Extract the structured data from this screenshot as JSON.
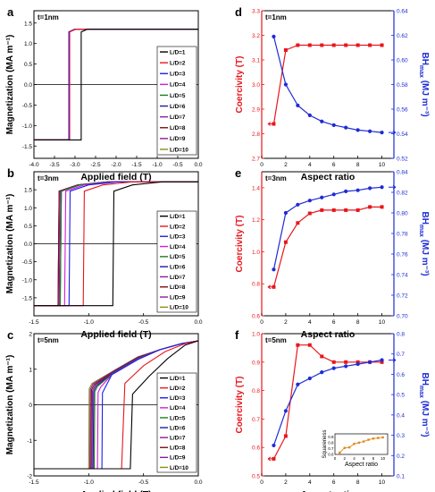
{
  "figure_title": "Magnetization curves and coercivity vs aspect ratio",
  "series_colors": [
    "#000000",
    "#e8161c",
    "#1d1dea",
    "#d61ad6",
    "#1a7f1a",
    "#1a1aa8",
    "#8a1a9e",
    "#7a1010",
    "#8a1a9e",
    "#8c8c1a"
  ],
  "red_color": "#e8161c",
  "blue_color": "#1d2bd6",
  "orange_color": "#e08a1a",
  "chart_data": [
    {
      "id": "a",
      "panel_label": "a",
      "type": "line",
      "annotation": "t=1nm",
      "xlabel": "Applied field (T)",
      "ylabel": "Magnetization (MA m⁻¹)",
      "xlim": [
        -4.0,
        0.0
      ],
      "ylim": [
        -1.8,
        1.8
      ],
      "xticks": [
        -4.0,
        -3.5,
        -3.0,
        -2.5,
        -2.0,
        -1.5,
        -1.0,
        -0.5,
        0.0
      ],
      "xtick_labels": [
        "-4.0",
        "-3.5",
        "-3.0",
        "-2.5",
        "-2.0",
        "-1.5",
        "-1.0",
        "-0.5",
        "0.0"
      ],
      "yticks": [
        -1.5,
        -1.0,
        -0.5,
        0.0,
        0.5,
        1.0,
        1.5
      ],
      "ytick_labels": [
        "-1.5",
        "-1.0",
        "-0.5",
        "0.0",
        "0.5",
        "1.0",
        "1.5"
      ],
      "legend": [
        "L/D=1",
        "L/D=2",
        "L/D=3",
        "L/D=4",
        "L/D=5",
        "L/D=6",
        "L/D=7",
        "L/D=8",
        "L/D=9",
        "L/D=10"
      ],
      "legend_position": "right",
      "ms": 1.35,
      "switch_fields": [
        -2.85,
        -3.13,
        -3.15,
        -3.15,
        -3.15,
        -3.15,
        -3.15,
        -3.15,
        -3.15,
        -3.15
      ]
    },
    {
      "id": "b",
      "panel_label": "b",
      "type": "line",
      "annotation": "t=3nm",
      "xlabel": "Applied field (T)",
      "ylabel": "Magnetization (MA m⁻¹)",
      "xlim": [
        -1.5,
        0.0
      ],
      "ylim": [
        -2.0,
        2.0
      ],
      "xticks": [
        -1.5,
        -1.0,
        -0.5,
        0.0
      ],
      "xtick_labels": [
        "-1.5",
        "-1.0",
        "-0.5",
        "0.0"
      ],
      "yticks": [
        -1.5,
        -1.0,
        -0.5,
        0.0,
        0.5,
        1.0,
        1.5
      ],
      "ytick_labels": [
        "-1.5",
        "-1.0",
        "-0.5",
        "0.0",
        "0.5",
        "1.0",
        "1.5"
      ],
      "legend": [
        "L/D=1",
        "L/D=2",
        "L/D=3",
        "L/D=4",
        "L/D=5",
        "L/D=6",
        "L/D=7",
        "L/D=8",
        "L/D=9",
        "L/D=10"
      ],
      "legend_position": "right",
      "ms": 1.72,
      "switch_fields": [
        -0.78,
        -1.05,
        -1.18,
        -1.22,
        -1.26,
        -1.26,
        -1.27,
        -1.28,
        -1.28,
        -1.28
      ]
    },
    {
      "id": "c",
      "panel_label": "c",
      "type": "line",
      "annotation": "t=5nm",
      "xlabel": "Applied field (T)",
      "ylabel": "Magnetization (MA m⁻¹)",
      "xlim": [
        -1.5,
        0.0
      ],
      "ylim": [
        -2.0,
        2.0
      ],
      "xticks": [
        -1.5,
        -1.0,
        -0.5,
        0.0
      ],
      "xtick_labels": [
        "-1.5",
        "-1.0",
        "-0.5",
        "0.0"
      ],
      "yticks": [
        -2,
        -1,
        0,
        1,
        2
      ],
      "ytick_labels": [
        "-2",
        "-1",
        "0",
        "1",
        "2"
      ],
      "legend": [
        "L/D=1",
        "L/D=2",
        "L/D=3",
        "L/D=4",
        "L/D=5",
        "L/D=6",
        "L/D=7",
        "L/D=8",
        "L/D=9",
        "L/D=10"
      ],
      "legend_position": "right",
      "ms": 1.8,
      "switch_fields": [
        -0.62,
        -0.7,
        -0.88,
        -0.92,
        -0.95,
        -0.96,
        -0.97,
        -0.98,
        -0.99,
        -1.0
      ]
    },
    {
      "id": "d",
      "panel_label": "d",
      "type": "line",
      "annotation": "t=1nm",
      "xlabel": "Aspect ratio",
      "ylabel_left": "Coercivity (T)",
      "ylabel_right": "BH",
      "ylabel_right_sub": "max",
      "ylabel_right_unit": "(MJ m⁻³)",
      "xlim": [
        0,
        11
      ],
      "xticks": [
        0,
        2,
        4,
        6,
        8,
        10
      ],
      "ylim_left": [
        2.7,
        3.3
      ],
      "yticks_left": [
        2.7,
        2.8,
        2.9,
        3.0,
        3.1,
        3.2,
        3.3
      ],
      "ytick_labels_left": [
        "2.7",
        "2.8",
        "2.9",
        "3.0",
        "3.1",
        "3.2",
        "3.3"
      ],
      "ylim_right": [
        0.52,
        0.64
      ],
      "yticks_right": [
        0.52,
        0.54,
        0.56,
        0.58,
        0.6,
        0.62,
        0.64
      ],
      "ytick_labels_right": [
        "0.52",
        "0.54",
        "0.56",
        "0.58",
        "0.60",
        "0.62",
        "0.64"
      ],
      "x": [
        1,
        2,
        3,
        4,
        5,
        6,
        7,
        8,
        9,
        10
      ],
      "series": [
        {
          "axis": "left",
          "marker": "square",
          "values": [
            2.84,
            3.14,
            3.16,
            3.16,
            3.16,
            3.16,
            3.16,
            3.16,
            3.16,
            3.16
          ]
        },
        {
          "axis": "right",
          "marker": "circle",
          "values": [
            0.619,
            0.58,
            0.563,
            0.555,
            0.55,
            0.547,
            0.545,
            0.543,
            0.542,
            0.541
          ]
        }
      ]
    },
    {
      "id": "e",
      "panel_label": "e",
      "type": "line",
      "annotation": "t=3nm",
      "xlabel": "Aspect ratio",
      "ylabel_left": "Coercivity (T)",
      "ylabel_right": "BH",
      "ylabel_right_sub": "max",
      "ylabel_right_unit": "(MJ m⁻³)",
      "xlim": [
        0,
        11
      ],
      "xticks": [
        0,
        2,
        4,
        6,
        8,
        10
      ],
      "ylim_left": [
        0.6,
        1.5
      ],
      "yticks_left": [
        0.6,
        0.8,
        1.0,
        1.2,
        1.4
      ],
      "ytick_labels_left": [
        "0.6",
        "0.8",
        "1.0",
        "1.2",
        "1.4"
      ],
      "ylim_right": [
        0.7,
        0.84
      ],
      "yticks_right": [
        0.7,
        0.72,
        0.74,
        0.76,
        0.78,
        0.8,
        0.82,
        0.84
      ],
      "ytick_labels_right": [
        "0.70",
        "0.72",
        "0.74",
        "0.76",
        "0.78",
        "0.80",
        "0.82",
        "0.84"
      ],
      "x": [
        1,
        2,
        3,
        4,
        5,
        6,
        7,
        8,
        9,
        10
      ],
      "series": [
        {
          "axis": "left",
          "marker": "square",
          "values": [
            0.78,
            1.06,
            1.18,
            1.24,
            1.26,
            1.26,
            1.26,
            1.26,
            1.28,
            1.28
          ]
        },
        {
          "axis": "right",
          "marker": "circle",
          "values": [
            0.745,
            0.8,
            0.808,
            0.812,
            0.815,
            0.818,
            0.821,
            0.822,
            0.824,
            0.825
          ]
        }
      ]
    },
    {
      "id": "f",
      "panel_label": "f",
      "type": "line",
      "annotation": "t=5nm",
      "xlabel": "Aspect ratio",
      "ylabel_left": "Coercivity (T)",
      "ylabel_right": "BH",
      "ylabel_right_sub": "max",
      "ylabel_right_unit": "(MJ m⁻³)",
      "xlim": [
        0,
        11
      ],
      "xticks": [
        0,
        2,
        4,
        6,
        8,
        10
      ],
      "ylim_left": [
        0.5,
        1.0
      ],
      "yticks_left": [
        0.5,
        0.6,
        0.7,
        0.8,
        0.9,
        1.0
      ],
      "ytick_labels_left": [
        "0.5",
        "0.6",
        "0.7",
        "0.8",
        "0.9",
        "1.0"
      ],
      "ylim_right": [
        0.1,
        0.8
      ],
      "yticks_right": [
        0.1,
        0.2,
        0.3,
        0.4,
        0.5,
        0.6,
        0.7,
        0.8
      ],
      "ytick_labels_right": [
        "0.1",
        "0.2",
        "0.3",
        "0.4",
        "0.5",
        "0.6",
        "0.7",
        "0.8"
      ],
      "x": [
        1,
        2,
        3,
        4,
        5,
        6,
        7,
        8,
        9,
        10
      ],
      "series": [
        {
          "axis": "left",
          "marker": "square",
          "values": [
            0.56,
            0.64,
            0.96,
            0.96,
            0.92,
            0.9,
            0.9,
            0.9,
            0.9,
            0.9
          ]
        },
        {
          "axis": "right",
          "marker": "circle",
          "values": [
            0.25,
            0.42,
            0.55,
            0.58,
            0.61,
            0.63,
            0.64,
            0.65,
            0.66,
            0.67
          ]
        }
      ],
      "inset": {
        "xlabel": "Aspect ratio",
        "ylabel": "Squareness",
        "xlim": [
          0,
          11
        ],
        "xticks": [
          0,
          2,
          4,
          6,
          8,
          10
        ],
        "ylim": [
          0.6,
          0.95
        ],
        "yticks": [
          0.6,
          0.7,
          0.8,
          0.9
        ],
        "ytick_labels": [
          "0.6",
          "0.7",
          "0.8",
          "0.9"
        ],
        "x": [
          1,
          2,
          3,
          4,
          5,
          6,
          7,
          8,
          9,
          10
        ],
        "values": [
          0.63,
          0.71,
          0.72,
          0.78,
          0.8,
          0.82,
          0.85,
          0.87,
          0.88,
          0.89
        ]
      }
    }
  ]
}
